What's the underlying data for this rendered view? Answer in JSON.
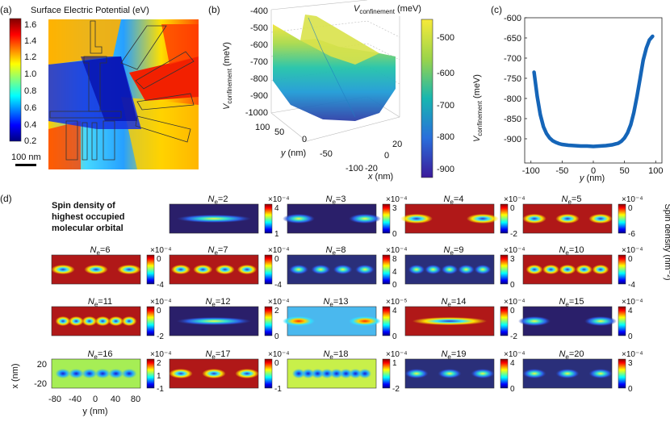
{
  "panel_a": {
    "letter": "(a)",
    "title": "Surface Electric Potential (eV)",
    "colorbar_ticks": [
      "1.6",
      "1.4",
      "1.2",
      "1.0",
      "0.8",
      "0.6",
      "0.4",
      "0.2"
    ],
    "scale_bar": "100 nm"
  },
  "panel_b": {
    "letter": "(b)",
    "zlabel_main": "V",
    "zlabel_sub": "confinement",
    "zlabel_unit": " (meV)",
    "z_ticks": [
      "-400",
      "-500",
      "-600",
      "-700",
      "-800",
      "-900",
      "-1000"
    ],
    "y_ticks": [
      "100",
      "50",
      "0",
      "-50",
      "-100"
    ],
    "x_ticks": [
      "20",
      "0",
      "-20"
    ],
    "ylabel_var": "y",
    "ylabel_unit": " (nm)",
    "xlabel_var": "x",
    "xlabel_unit": " (nm)",
    "colorbar_main": "V",
    "colorbar_sub": "confinement",
    "colorbar_unit": " (meV)",
    "colorbar_ticks": [
      "-500",
      "-600",
      "-700",
      "-800",
      "-900"
    ]
  },
  "panel_d": {
    "letter": "(d)",
    "legend_lines": [
      "Spin density of",
      "highest occupied",
      "molecular orbital"
    ],
    "right_label": "Spin density (nm⁻²)",
    "x_axis_label": "x (nm)",
    "y_axis_label": "y (nm)",
    "x_ticks": [
      "20",
      "-20"
    ],
    "y_ticks": [
      "-80",
      "-40",
      "0",
      "40",
      "80"
    ],
    "n_var": "N",
    "n_sub": "e",
    "n_eq": "=",
    "subplots": [
      {
        "n": "2",
        "exp": "×10⁻⁴",
        "ticks": [
          "4",
          "1"
        ]
      },
      {
        "n": "3",
        "exp": "×10⁻⁴",
        "ticks": [
          "3",
          "0"
        ]
      },
      {
        "n": "4",
        "exp": "×10⁻⁴",
        "ticks": [
          "0",
          "-2"
        ]
      },
      {
        "n": "5",
        "exp": "×10⁻⁴",
        "ticks": [
          "0",
          "-6"
        ]
      },
      {
        "n": "6",
        "exp": "×10⁻⁴",
        "ticks": [
          "0",
          "-4"
        ]
      },
      {
        "n": "7",
        "exp": "×10⁻⁴",
        "ticks": [
          "0",
          "-4"
        ]
      },
      {
        "n": "8",
        "exp": "×10⁻⁴",
        "ticks": [
          "8",
          "4",
          "0"
        ]
      },
      {
        "n": "9",
        "exp": "×10⁻⁴",
        "ticks": [
          "3",
          "0"
        ]
      },
      {
        "n": "10",
        "exp": "×10⁻⁴",
        "ticks": [
          "0",
          "-4"
        ]
      },
      {
        "n": "11",
        "exp": "×10⁻⁴",
        "ticks": [
          "0",
          "-2"
        ]
      },
      {
        "n": "12",
        "exp": "×10⁻⁴",
        "ticks": [
          "2",
          "0"
        ]
      },
      {
        "n": "13",
        "exp": "×10⁻⁵",
        "ticks": [
          "4",
          "0"
        ]
      },
      {
        "n": "14",
        "exp": "×10⁻⁴",
        "ticks": [
          "0",
          "-2"
        ]
      },
      {
        "n": "15",
        "exp": "×10⁻⁴",
        "ticks": [
          "4",
          "0"
        ]
      },
      {
        "n": "16",
        "exp": "×10⁻⁴",
        "ticks": [
          "2",
          "1",
          "-1"
        ]
      },
      {
        "n": "17",
        "exp": "×10⁻⁴",
        "ticks": [
          "0",
          "-1"
        ]
      },
      {
        "n": "18",
        "exp": "×10⁻⁴",
        "ticks": [
          "1",
          "-2"
        ]
      },
      {
        "n": "19",
        "exp": "×10⁻⁴",
        "ticks": [
          "4",
          "0"
        ]
      },
      {
        "n": "20",
        "exp": "×10⁻⁴",
        "ticks": [
          "3",
          "0"
        ]
      }
    ]
  },
  "chart_data": {
    "type": "line",
    "title": "(c)",
    "xlabel_var": "y",
    "xlabel_unit": " (nm)",
    "ylabel_main": "V",
    "ylabel_sub": "confinement",
    "ylabel_unit": " (meV)",
    "xlim": [
      -110,
      110
    ],
    "ylim": [
      -960,
      -600
    ],
    "x_ticks": [
      -100,
      -50,
      0,
      50,
      100
    ],
    "y_ticks": [
      -600,
      -650,
      -700,
      -750,
      -800,
      -850,
      -900
    ],
    "x": [
      -95,
      -90,
      -85,
      -80,
      -75,
      -70,
      -65,
      -60,
      -55,
      -50,
      -45,
      -40,
      -30,
      -20,
      -10,
      0,
      10,
      20,
      30,
      40,
      45,
      50,
      55,
      60,
      65,
      70,
      75,
      80,
      85,
      90,
      95
    ],
    "y": [
      -735,
      -795,
      -840,
      -870,
      -887,
      -898,
      -905,
      -909,
      -912,
      -914,
      -915,
      -916,
      -917,
      -918,
      -918,
      -919,
      -918,
      -917,
      -915,
      -911,
      -906,
      -898,
      -885,
      -865,
      -835,
      -795,
      -750,
      -705,
      -675,
      -655,
      -646
    ],
    "color": "#1565b8"
  }
}
